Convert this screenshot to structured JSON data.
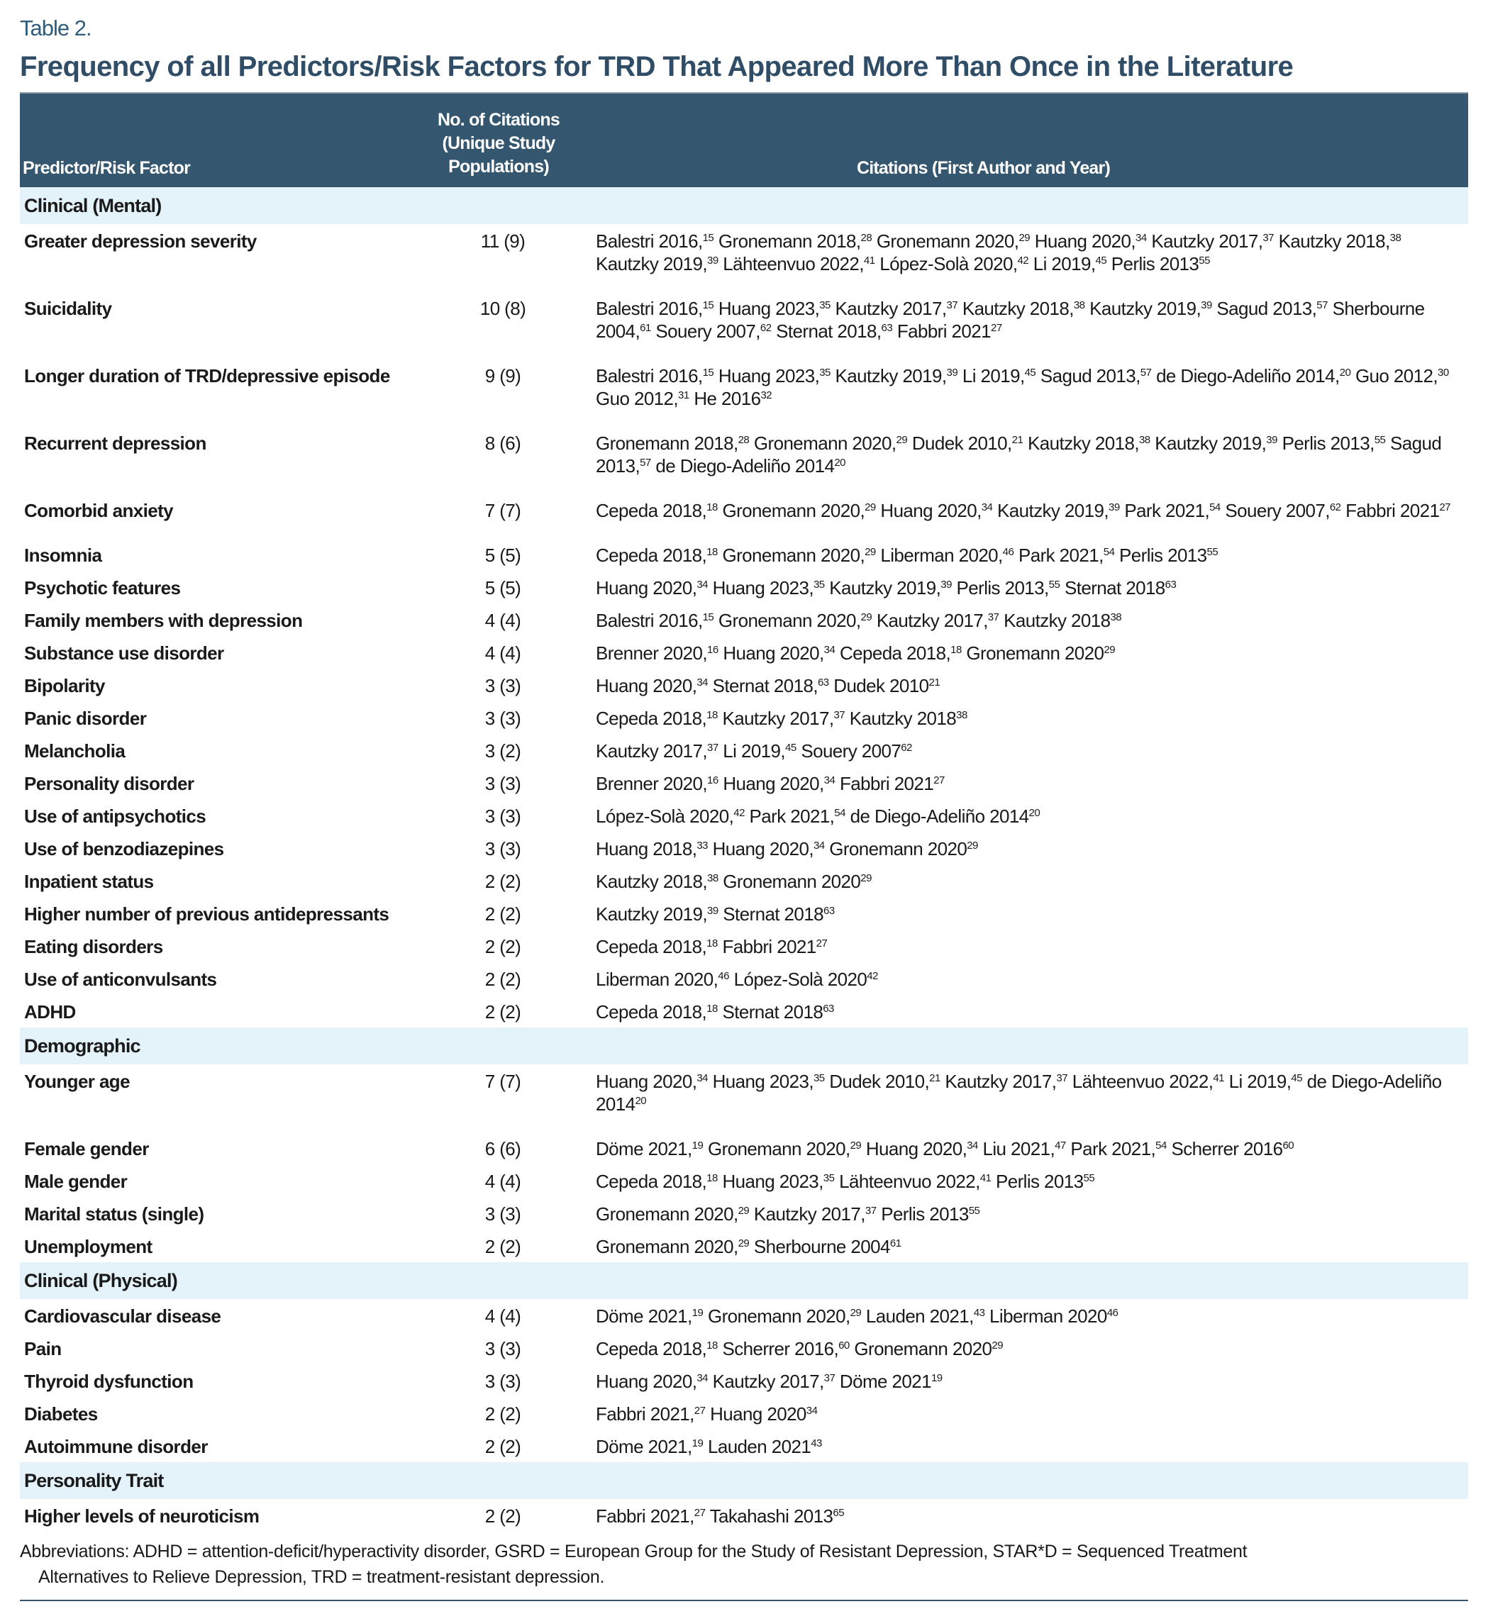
{
  "table_label": "Table 2.",
  "title": "Frequency of all Predictors/Risk Factors for TRD That Appeared More Than Once in the Literature",
  "header": {
    "col1": "Predictor/Risk Factor",
    "col2_lines": [
      "No. of Citations",
      "(Unique Study",
      "Populations)"
    ],
    "col3": "Citations (First Author and Year)"
  },
  "colors": {
    "header_bg": "#34566f",
    "band_bg": "#e4f2fa",
    "title": "#2f4d66"
  },
  "sections": [
    {
      "name": "Clinical (Mental)",
      "rows": [
        {
          "factor": "Greater depression severity",
          "count": "11 (9)",
          "cites": [
            [
              "Balestri 2016",
              "15"
            ],
            [
              "Gronemann 2018",
              "28"
            ],
            [
              "Gronemann 2020",
              "29"
            ],
            [
              "Huang 2020",
              "34"
            ],
            [
              "Kautzky 2017",
              "37"
            ],
            [
              "Kautzky 2018",
              "38"
            ],
            [
              "Kautzky 2019",
              "39"
            ],
            [
              "Lähteenvuo 2022",
              "41"
            ],
            [
              "López-Solà 2020",
              "42"
            ],
            [
              "Li 2019",
              "45"
            ],
            [
              "Perlis 2013",
              "55"
            ]
          ]
        },
        {
          "factor": "Suicidality",
          "count": "10 (8)",
          "cites": [
            [
              "Balestri 2016",
              "15"
            ],
            [
              "Huang 2023",
              "35"
            ],
            [
              "Kautzky 2017",
              "37"
            ],
            [
              "Kautzky 2018",
              "38"
            ],
            [
              "Kautzky 2019",
              "39"
            ],
            [
              "Sagud 2013",
              "57"
            ],
            [
              "Sherbourne 2004",
              "61"
            ],
            [
              "Souery 2007",
              "62"
            ],
            [
              "Sternat 2018",
              "63"
            ],
            [
              "Fabbri 2021",
              "27"
            ]
          ]
        },
        {
          "factor": "Longer duration of TRD/depressive episode",
          "count": "9 (9)",
          "cites": [
            [
              "Balestri 2016",
              "15"
            ],
            [
              "Huang 2023",
              "35"
            ],
            [
              "Kautzky 2019",
              "39"
            ],
            [
              "Li 2019",
              "45"
            ],
            [
              "Sagud 2013",
              "57"
            ],
            [
              "de Diego-Adeliño 2014",
              "20"
            ],
            [
              "Guo 2012",
              "30"
            ],
            [
              "Guo 2012",
              "31"
            ],
            [
              "He 2016",
              "32"
            ]
          ]
        },
        {
          "factor": "Recurrent depression",
          "count": "8 (6)",
          "cites": [
            [
              "Gronemann 2018",
              "28"
            ],
            [
              "Gronemann 2020",
              "29"
            ],
            [
              "Dudek 2010",
              "21"
            ],
            [
              "Kautzky 2018",
              "38"
            ],
            [
              "Kautzky 2019",
              "39"
            ],
            [
              "Perlis 2013",
              "55"
            ],
            [
              "Sagud 2013",
              "57"
            ],
            [
              "de Diego-Adeliño 2014",
              "20"
            ]
          ]
        },
        {
          "factor": "Comorbid anxiety",
          "count": "7 (7)",
          "cites": [
            [
              "Cepeda 2018",
              "18"
            ],
            [
              "Gronemann 2020",
              "29"
            ],
            [
              "Huang 2020",
              "34"
            ],
            [
              "Kautzky 2019",
              "39"
            ],
            [
              "Park 2021",
              "54"
            ],
            [
              "Souery 2007",
              "62"
            ],
            [
              "Fabbri 2021",
              "27"
            ]
          ]
        },
        {
          "factor": "Insomnia",
          "count": "5 (5)",
          "cites": [
            [
              "Cepeda 2018",
              "18"
            ],
            [
              "Gronemann 2020",
              "29"
            ],
            [
              "Liberman 2020",
              "46"
            ],
            [
              "Park 2021",
              "54"
            ],
            [
              "Perlis 2013",
              "55"
            ]
          ]
        },
        {
          "factor": "Psychotic features",
          "count": "5 (5)",
          "cites": [
            [
              "Huang 2020",
              "34"
            ],
            [
              "Huang 2023",
              "35"
            ],
            [
              "Kautzky 2019",
              "39"
            ],
            [
              "Perlis 2013",
              "55"
            ],
            [
              "Sternat 2018",
              "63"
            ]
          ]
        },
        {
          "factor": "Family members with depression",
          "count": "4 (4)",
          "cites": [
            [
              "Balestri 2016",
              "15"
            ],
            [
              "Gronemann 2020",
              "29"
            ],
            [
              "Kautzky 2017",
              "37"
            ],
            [
              "Kautzky 2018",
              "38"
            ]
          ]
        },
        {
          "factor": "Substance use disorder",
          "count": "4 (4)",
          "cites": [
            [
              "Brenner 2020",
              "16"
            ],
            [
              "Huang 2020",
              "34"
            ],
            [
              "Cepeda 2018",
              "18"
            ],
            [
              "Gronemann 2020",
              "29"
            ]
          ]
        },
        {
          "factor": "Bipolarity",
          "count": "3 (3)",
          "cites": [
            [
              "Huang 2020",
              "34"
            ],
            [
              "Sternat 2018",
              "63"
            ],
            [
              "Dudek 2010",
              "21"
            ]
          ]
        },
        {
          "factor": "Panic disorder",
          "count": "3 (3)",
          "cites": [
            [
              "Cepeda 2018",
              "18"
            ],
            [
              "Kautzky 2017",
              "37"
            ],
            [
              "Kautzky 2018",
              "38"
            ]
          ]
        },
        {
          "factor": "Melancholia",
          "count": "3 (2)",
          "cites": [
            [
              "Kautzky 2017",
              "37"
            ],
            [
              "Li 2019",
              "45"
            ],
            [
              "Souery 2007",
              "62"
            ]
          ]
        },
        {
          "factor": "Personality disorder",
          "count": "3 (3)",
          "cites": [
            [
              "Brenner 2020",
              "16"
            ],
            [
              "Huang 2020",
              "34"
            ],
            [
              "Fabbri 2021",
              "27"
            ]
          ]
        },
        {
          "factor": "Use of antipsychotics",
          "count": "3 (3)",
          "cites": [
            [
              "López-Solà 2020",
              "42"
            ],
            [
              "Park 2021",
              "54"
            ],
            [
              "de Diego-Adeliño 2014",
              "20"
            ]
          ]
        },
        {
          "factor": "Use of benzodiazepines",
          "count": "3 (3)",
          "cites": [
            [
              "Huang 2018",
              "33"
            ],
            [
              "Huang 2020",
              "34"
            ],
            [
              "Gronemann 2020",
              "29"
            ]
          ]
        },
        {
          "factor": "Inpatient status",
          "count": "2 (2)",
          "cites": [
            [
              "Kautzky 2018",
              "38"
            ],
            [
              "Gronemann 2020",
              "29"
            ]
          ]
        },
        {
          "factor": "Higher number of previous antidepressants",
          "count": "2 (2)",
          "cites": [
            [
              "Kautzky 2019",
              "39"
            ],
            [
              "Sternat 2018",
              "63"
            ]
          ]
        },
        {
          "factor": "Eating disorders",
          "count": "2 (2)",
          "cites": [
            [
              "Cepeda 2018",
              "18"
            ],
            [
              "Fabbri 2021",
              "27"
            ]
          ]
        },
        {
          "factor": "Use of anticonvulsants",
          "count": "2 (2)",
          "cites": [
            [
              "Liberman 2020",
              "46"
            ],
            [
              "López-Solà 2020",
              "42"
            ]
          ]
        },
        {
          "factor": "ADHD",
          "count": "2 (2)",
          "cites": [
            [
              "Cepeda 2018",
              "18"
            ],
            [
              "Sternat 2018",
              "63"
            ]
          ]
        }
      ]
    },
    {
      "name": "Demographic",
      "rows": [
        {
          "factor": "Younger age",
          "count": "7 (7)",
          "cites": [
            [
              "Huang 2020",
              "34"
            ],
            [
              "Huang 2023",
              "35"
            ],
            [
              "Dudek 2010",
              "21"
            ],
            [
              "Kautzky 2017",
              "37"
            ],
            [
              "Lähteenvuo 2022",
              "41"
            ],
            [
              "Li 2019",
              "45"
            ],
            [
              "de Diego-Adeliño 2014",
              "20"
            ]
          ]
        },
        {
          "factor": "Female gender",
          "count": "6 (6)",
          "cites": [
            [
              "Döme 2021",
              "19"
            ],
            [
              "Gronemann 2020",
              "29"
            ],
            [
              "Huang 2020",
              "34"
            ],
            [
              "Liu 2021",
              "47"
            ],
            [
              "Park 2021",
              "54"
            ],
            [
              "Scherrer 2016",
              "60"
            ]
          ]
        },
        {
          "factor": "Male gender",
          "count": "4 (4)",
          "cites": [
            [
              "Cepeda 2018",
              "18"
            ],
            [
              "Huang 2023",
              "35"
            ],
            [
              "Lähteenvuo 2022",
              "41"
            ],
            [
              "Perlis 2013",
              "55"
            ]
          ]
        },
        {
          "factor": "Marital status (single)",
          "count": "3 (3)",
          "cites": [
            [
              "Gronemann 2020",
              "29"
            ],
            [
              "Kautzky 2017",
              "37"
            ],
            [
              "Perlis 2013",
              "55"
            ]
          ]
        },
        {
          "factor": "Unemployment",
          "count": "2 (2)",
          "cites": [
            [
              "Gronemann 2020",
              "29"
            ],
            [
              "Sherbourne 2004",
              "61"
            ]
          ]
        }
      ]
    },
    {
      "name": "Clinical (Physical)",
      "rows": [
        {
          "factor": "Cardiovascular disease",
          "count": "4 (4)",
          "cites": [
            [
              "Döme 2021",
              "19"
            ],
            [
              "Gronemann 2020",
              "29"
            ],
            [
              "Lauden 2021",
              "43"
            ],
            [
              "Liberman 2020",
              "46"
            ]
          ]
        },
        {
          "factor": "Pain",
          "count": "3 (3)",
          "cites": [
            [
              "Cepeda 2018",
              "18"
            ],
            [
              "Scherrer 2016",
              "60"
            ],
            [
              "Gronemann 2020",
              "29"
            ]
          ]
        },
        {
          "factor": "Thyroid dysfunction",
          "count": "3 (3)",
          "cites": [
            [
              "Huang 2020",
              "34"
            ],
            [
              "Kautzky 2017",
              "37"
            ],
            [
              "Döme 2021",
              "19"
            ]
          ]
        },
        {
          "factor": "Diabetes",
          "count": "2 (2)",
          "cites": [
            [
              "Fabbri 2021",
              "27"
            ],
            [
              "Huang 2020",
              "34"
            ]
          ]
        },
        {
          "factor": "Autoimmune disorder",
          "count": "2 (2)",
          "cites": [
            [
              "Döme 2021",
              "19"
            ],
            [
              "Lauden 2021",
              "43"
            ]
          ]
        }
      ]
    },
    {
      "name": "Personality Trait",
      "rows": [
        {
          "factor": "Higher levels of neuroticism",
          "count": "2 (2)",
          "cites": [
            [
              "Fabbri 2021",
              "27"
            ],
            [
              "Takahashi 2013",
              "65"
            ]
          ]
        }
      ]
    }
  ],
  "footnote": {
    "line1": "Abbreviations: ADHD = attention-deficit/hyperactivity disorder, GSRD = European Group for the Study of Resistant Depression, STAR*D = Sequenced Treatment",
    "line2": "Alternatives to Relieve Depression, TRD = treatment-resistant depression."
  }
}
